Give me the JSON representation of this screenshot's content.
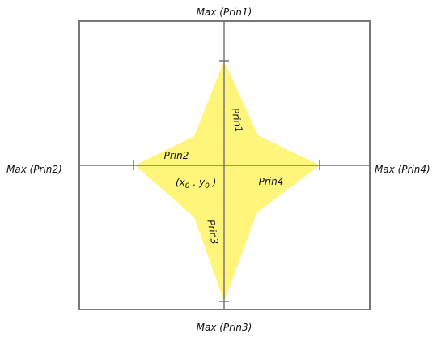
{
  "labels": {
    "top": "Max (Prin1)",
    "left": "Max (Prin2)",
    "right": "Max (Prin4)",
    "bottom": "Max (Prin3)",
    "prin1": "Prin1",
    "prin2": "Prin2",
    "prin3": "Prin3",
    "prin4": "Prin4",
    "center": {
      "open": "(x",
      "sub_x": "0",
      "comma": " , y",
      "sub_y": "0",
      "close": " )"
    }
  },
  "colors": {
    "fill": "#fff57a",
    "frame": "#777777",
    "axis": "#777777",
    "text": "#111111"
  }
}
